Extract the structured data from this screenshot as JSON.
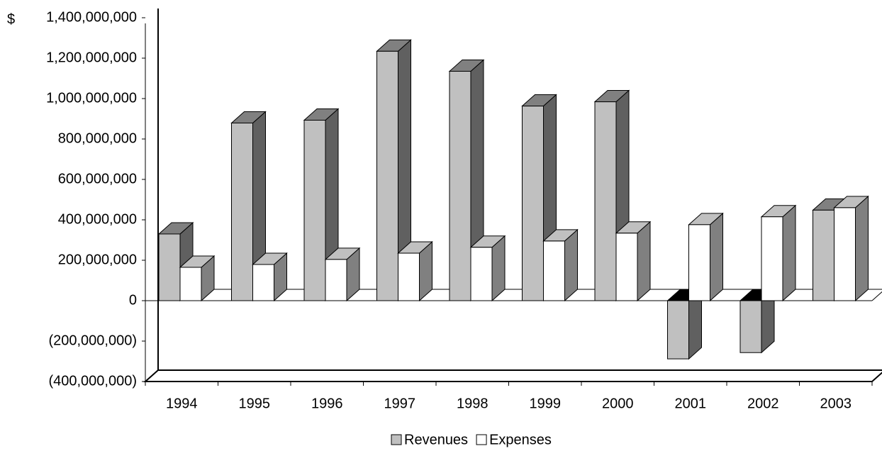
{
  "chart_data": {
    "type": "bar3d",
    "ylabel": "$",
    "categories": [
      "1994",
      "1995",
      "1996",
      "1997",
      "1998",
      "1999",
      "2000",
      "2001",
      "2002",
      "2003"
    ],
    "series": [
      {
        "name": "Revenues",
        "color": "#c0c0c0",
        "values": [
          330000000,
          879000000,
          893000000,
          1234000000,
          1135000000,
          963000000,
          984000000,
          -288000000,
          -257000000,
          448000000
        ]
      },
      {
        "name": "Expenses",
        "color": "#ffffff",
        "values": [
          165000000,
          179000000,
          204000000,
          235000000,
          264000000,
          295000000,
          334000000,
          376000000,
          415000000,
          460000000
        ]
      }
    ],
    "ylim": [
      -400000000,
      1400000000
    ],
    "yticks": [
      {
        "value": -400000000,
        "label": "(400,000,000)"
      },
      {
        "value": -200000000,
        "label": "(200,000,000)"
      },
      0,
      {
        "value": 200000000,
        "label": "200,000,000"
      },
      {
        "value": 400000000,
        "label": "400,000,000"
      },
      {
        "value": 600000000,
        "label": "600,000,000"
      },
      {
        "value": 800000000,
        "label": "800,000,000"
      },
      {
        "value": 1000000000,
        "label": "1,000,000,000"
      },
      {
        "value": 1200000000,
        "label": "1,200,000,000"
      },
      {
        "value": 1400000000,
        "label": "1,400,000,000"
      }
    ]
  }
}
